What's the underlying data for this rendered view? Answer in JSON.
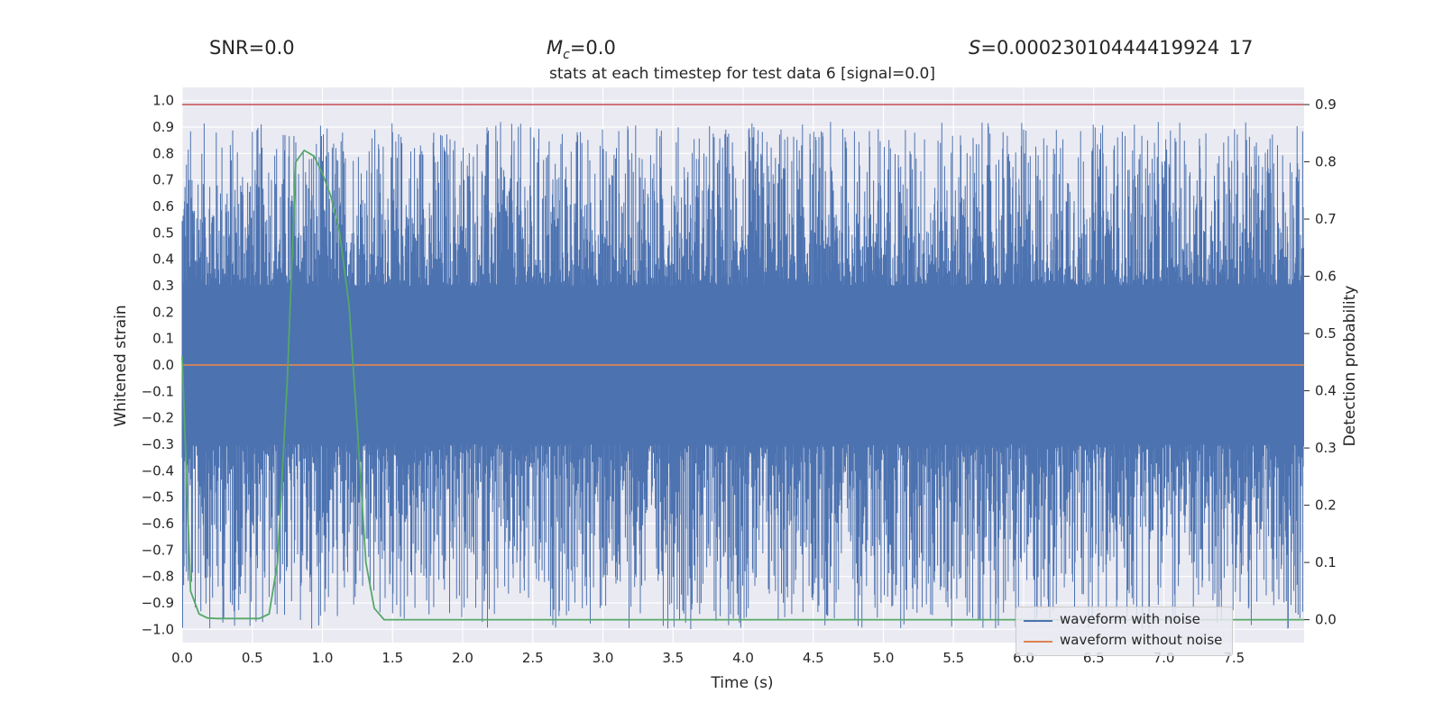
{
  "header": {
    "snr": "SNR=0.0",
    "mc_symbol": "M",
    "mc_sub": "c",
    "mc_value": "=0.0",
    "s_symbol": "S",
    "s_value": "=0.00023010444419924 17"
  },
  "chart_data": {
    "type": "line",
    "title": "stats at each timestep for test data 6 [signal=0.0]",
    "xlabel": "Time (s)",
    "ylabel": "Whitened strain",
    "y2label": "Detection probability",
    "xlim": [
      0.0,
      8.0
    ],
    "ylim": [
      -1.05,
      1.05
    ],
    "y2lim": [
      -0.04,
      0.93
    ],
    "xticks": [
      0.0,
      0.5,
      1.0,
      1.5,
      2.0,
      2.5,
      3.0,
      3.5,
      4.0,
      4.5,
      5.0,
      5.5,
      6.0,
      6.5,
      7.0,
      7.5
    ],
    "xtick_labels": [
      "0.0",
      "0.5",
      "1.0",
      "1.5",
      "2.0",
      "2.5",
      "3.0",
      "3.5",
      "4.0",
      "4.5",
      "5.0",
      "5.5",
      "6.0",
      "6.5",
      "7.0",
      "7.5"
    ],
    "yticks": [
      1.0,
      0.9,
      0.8,
      0.7,
      0.6,
      0.5,
      0.4,
      0.3,
      0.2,
      0.1,
      0.0,
      -0.1,
      -0.2,
      -0.3,
      -0.4,
      -0.5,
      -0.6,
      -0.7,
      -0.8,
      -0.9,
      -1.0
    ],
    "ytick_labels": [
      "1.0",
      "0.9",
      "0.8",
      "0.7",
      "0.6",
      "0.5",
      "0.4",
      "0.3",
      "0.2",
      "0.1",
      "0.0",
      "−0.1",
      "−0.2",
      "−0.3",
      "−0.4",
      "−0.5",
      "−0.6",
      "−0.7",
      "−0.8",
      "−0.9",
      "−1.0"
    ],
    "y2ticks": [
      0.0,
      0.1,
      0.2,
      0.3,
      0.4,
      0.5,
      0.6,
      0.7,
      0.8,
      0.9
    ],
    "y2tick_labels": [
      "0.0",
      "0.1",
      "0.2",
      "0.3",
      "0.4",
      "0.5",
      "0.6",
      "0.7",
      "0.8",
      "0.9"
    ],
    "threshold": {
      "value": 0.9,
      "axis": "right",
      "color": "#c44e52"
    },
    "noise_band": {
      "inner": 0.3,
      "peak_max": 0.92,
      "peak_min": -1.0,
      "color": "#4c72b0"
    },
    "series": [
      {
        "name": "waveform with noise",
        "color": "#4c72b0",
        "axis": "left",
        "kind": "noise"
      },
      {
        "name": "waveform without noise",
        "color": "#dd8452",
        "axis": "left",
        "x": [
          0.0,
          8.0
        ],
        "values": [
          0.0,
          0.0
        ]
      },
      {
        "name": "detection probability",
        "color": "#55a868",
        "axis": "right",
        "x": [
          0.0,
          0.06,
          0.12,
          0.18,
          0.25,
          0.35,
          0.45,
          0.55,
          0.62,
          0.68,
          0.75,
          0.81,
          0.87,
          0.94,
          1.0,
          1.06,
          1.12,
          1.19,
          1.25,
          1.31,
          1.37,
          1.44,
          1.6,
          2.0,
          3.0,
          4.0,
          5.0,
          6.0,
          7.0,
          8.0
        ],
        "values": [
          0.46,
          0.05,
          0.01,
          0.003,
          0.002,
          0.002,
          0.002,
          0.002,
          0.01,
          0.1,
          0.42,
          0.8,
          0.82,
          0.81,
          0.78,
          0.74,
          0.68,
          0.55,
          0.33,
          0.1,
          0.02,
          0.0,
          0.0,
          0.0,
          0.0,
          0.0,
          0.0,
          0.0,
          0.0,
          0.0
        ]
      }
    ],
    "legend": {
      "position": "lower-right",
      "entries": [
        {
          "label": "waveform with noise",
          "color": "#4c72b0"
        },
        {
          "label": "waveform without noise",
          "color": "#dd8452"
        }
      ]
    }
  }
}
